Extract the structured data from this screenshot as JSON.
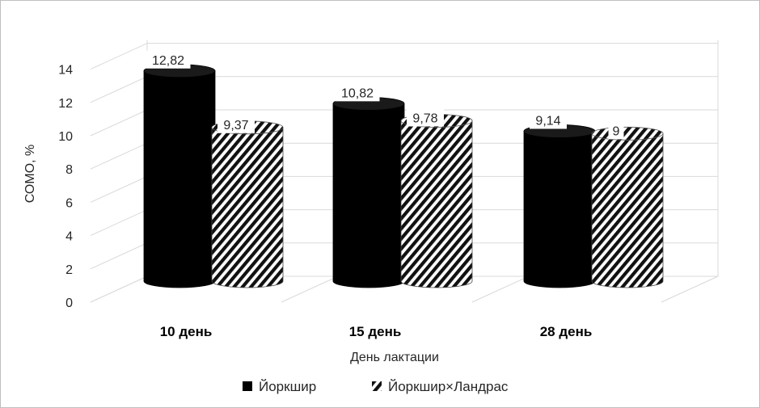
{
  "chart_data": {
    "type": "bar",
    "style": "3d-cylinder",
    "categories": [
      "10 день",
      "15 день",
      "28 день"
    ],
    "series": [
      {
        "name": "Йоркшир",
        "values": [
          12.82,
          10.82,
          9.14
        ],
        "labels": [
          "12,82",
          "10,82",
          "9,14"
        ],
        "fill": "solid",
        "color": "#000000"
      },
      {
        "name": "Йоркшир×Ландрас",
        "values": [
          9.37,
          9.78,
          9
        ],
        "labels": [
          "9,37",
          "9,78",
          "9"
        ],
        "fill": "diagonal-stripes",
        "color": "#000000"
      }
    ],
    "yticks": [
      "0",
      "2",
      "4",
      "6",
      "8",
      "10",
      "12",
      "14"
    ],
    "ylim": [
      0,
      14
    ],
    "xlabel": "День лактации",
    "ylabel": "СОМО, %",
    "grid": true,
    "legend_position": "bottom"
  }
}
